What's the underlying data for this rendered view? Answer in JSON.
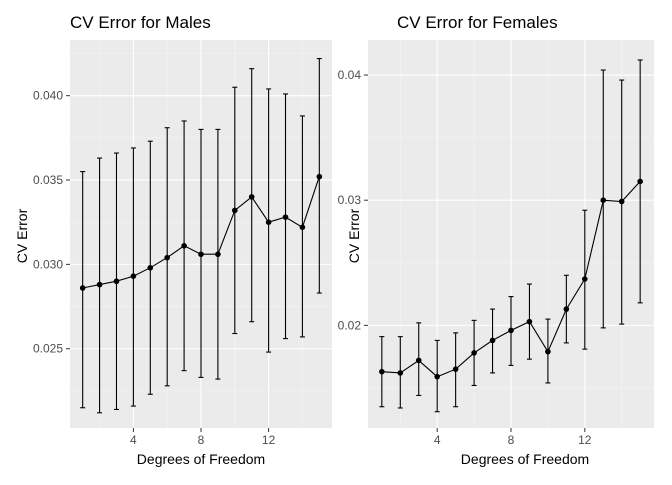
{
  "colors": {
    "panel_bg": "#ebebeb",
    "grid_major": "#ffffff",
    "grid_minor": "#f5f5f5",
    "ink": "#000000",
    "tick_text": "#4d4d4d"
  },
  "chart_data": [
    {
      "type": "line",
      "markers": true,
      "error_bars": true,
      "title": "CV Error for Males",
      "xlabel": "Degrees of Freedom",
      "ylabel": "CV Error",
      "xlim": [
        0.25,
        15.75
      ],
      "ylim": [
        0.0203,
        0.0433
      ],
      "x_ticks": [
        4,
        8,
        12
      ],
      "x_tick_labels": [
        "4",
        "8",
        "12"
      ],
      "y_ticks": [
        0.025,
        0.03,
        0.035,
        0.04
      ],
      "y_tick_labels": [
        "0.025",
        "0.030",
        "0.035",
        "0.040"
      ],
      "grid": true,
      "x": [
        1,
        2,
        3,
        4,
        5,
        6,
        7,
        8,
        9,
        10,
        11,
        12,
        13,
        14,
        15
      ],
      "y": [
        0.0286,
        0.0288,
        0.029,
        0.0293,
        0.0298,
        0.0304,
        0.0311,
        0.0306,
        0.0306,
        0.0332,
        0.034,
        0.0325,
        0.0328,
        0.0322,
        0.0352
      ],
      "err_low": [
        0.0215,
        0.0212,
        0.0214,
        0.0216,
        0.0223,
        0.0228,
        0.0237,
        0.0233,
        0.0232,
        0.0259,
        0.0266,
        0.0248,
        0.0256,
        0.0257,
        0.0283
      ],
      "err_high": [
        0.0355,
        0.0363,
        0.0366,
        0.0369,
        0.0373,
        0.0381,
        0.0385,
        0.038,
        0.038,
        0.0405,
        0.0416,
        0.0404,
        0.0401,
        0.0388,
        0.0422
      ]
    },
    {
      "type": "line",
      "markers": true,
      "error_bars": true,
      "title": "CV Error for Females",
      "xlabel": "Degrees of Freedom",
      "ylabel": "CV Error",
      "xlim": [
        0.25,
        15.75
      ],
      "ylim": [
        0.0118,
        0.0428
      ],
      "x_ticks": [
        4,
        8,
        12
      ],
      "x_tick_labels": [
        "4",
        "8",
        "12"
      ],
      "y_ticks": [
        0.02,
        0.03,
        0.04
      ],
      "y_tick_labels": [
        "0.02",
        "0.03",
        "0.04"
      ],
      "grid": true,
      "x": [
        1,
        2,
        3,
        4,
        5,
        6,
        7,
        8,
        9,
        10,
        11,
        12,
        13,
        14,
        15
      ],
      "y": [
        0.0163,
        0.0162,
        0.0172,
        0.0159,
        0.0165,
        0.0178,
        0.0188,
        0.0196,
        0.0203,
        0.0179,
        0.0213,
        0.0237,
        0.03,
        0.0299,
        0.0315
      ],
      "err_low": [
        0.0135,
        0.0134,
        0.0144,
        0.0131,
        0.0135,
        0.0152,
        0.0162,
        0.0168,
        0.0173,
        0.0154,
        0.0186,
        0.0181,
        0.0198,
        0.0201,
        0.0218
      ],
      "err_high": [
        0.0191,
        0.0191,
        0.0202,
        0.0188,
        0.0194,
        0.0204,
        0.0213,
        0.0223,
        0.0233,
        0.0205,
        0.024,
        0.0292,
        0.0404,
        0.0396,
        0.0412
      ]
    }
  ]
}
